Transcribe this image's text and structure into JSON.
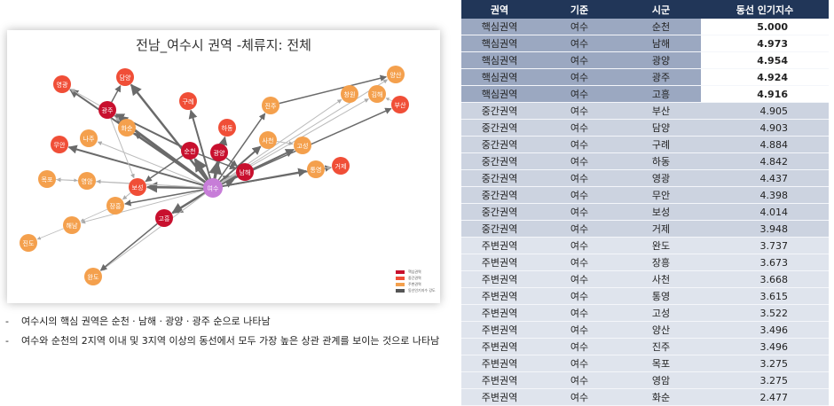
{
  "graph": {
    "title": "전남_여수시 권역 -체류지: 전체",
    "center": "여수",
    "nodes": [
      {
        "id": "여수",
        "tier": "center"
      },
      {
        "id": "순천",
        "tier": "core"
      },
      {
        "id": "남해",
        "tier": "core"
      },
      {
        "id": "광양",
        "tier": "core"
      },
      {
        "id": "광주",
        "tier": "core"
      },
      {
        "id": "고흥",
        "tier": "core"
      },
      {
        "id": "부산",
        "tier": "mid"
      },
      {
        "id": "담양",
        "tier": "mid"
      },
      {
        "id": "구례",
        "tier": "mid"
      },
      {
        "id": "하동",
        "tier": "mid"
      },
      {
        "id": "영광",
        "tier": "mid"
      },
      {
        "id": "무안",
        "tier": "mid"
      },
      {
        "id": "보성",
        "tier": "mid"
      },
      {
        "id": "거제",
        "tier": "mid"
      },
      {
        "id": "완도",
        "tier": "outer"
      },
      {
        "id": "장흥",
        "tier": "outer"
      },
      {
        "id": "사천",
        "tier": "outer"
      },
      {
        "id": "통영",
        "tier": "outer"
      },
      {
        "id": "고성",
        "tier": "outer"
      },
      {
        "id": "양산",
        "tier": "outer"
      },
      {
        "id": "진주",
        "tier": "outer"
      },
      {
        "id": "목포",
        "tier": "outer"
      },
      {
        "id": "영암",
        "tier": "outer"
      },
      {
        "id": "화순",
        "tier": "outer"
      },
      {
        "id": "나주",
        "tier": "outer"
      },
      {
        "id": "창원",
        "tier": "outer"
      },
      {
        "id": "김해",
        "tier": "outer"
      },
      {
        "id": "해남",
        "tier": "outer"
      },
      {
        "id": "진도",
        "tier": "outer"
      }
    ],
    "legend": [
      {
        "label": "핵심권역",
        "color": "#c8102e"
      },
      {
        "label": "중간권역",
        "color": "#f04e37"
      },
      {
        "label": "주변권역",
        "color": "#f4a04d"
      },
      {
        "label": "동선인기지수 강도",
        "color": "#555555"
      }
    ],
    "colors": {
      "center": "#c77dd8",
      "core": "#c8102e",
      "mid": "#f04e37",
      "outer": "#f4a04d"
    }
  },
  "notes": [
    "여수시의 핵심 권역은 순천ㆍ남해ㆍ광양ㆍ광주 순으로 나타남",
    "여수와 순천의 2지역 이내 및 3지역 이상의 동선에서 모두 가장 높은 상관 관계를 보이는 것으로 나타남"
  ],
  "table": {
    "headers": [
      "권역",
      "기준",
      "시군",
      "동선 인기지수"
    ],
    "rows": [
      {
        "tier": "core",
        "region": "핵심권역",
        "base": "여수",
        "city": "순천",
        "score": "5.000"
      },
      {
        "tier": "core",
        "region": "핵심권역",
        "base": "여수",
        "city": "남해",
        "score": "4.973"
      },
      {
        "tier": "core",
        "region": "핵심권역",
        "base": "여수",
        "city": "광양",
        "score": "4.954"
      },
      {
        "tier": "core",
        "region": "핵심권역",
        "base": "여수",
        "city": "광주",
        "score": "4.924"
      },
      {
        "tier": "core",
        "region": "핵심권역",
        "base": "여수",
        "city": "고흥",
        "score": "4.916"
      },
      {
        "tier": "mid",
        "region": "중간권역",
        "base": "여수",
        "city": "부산",
        "score": "4.905"
      },
      {
        "tier": "mid",
        "region": "중간권역",
        "base": "여수",
        "city": "담양",
        "score": "4.903"
      },
      {
        "tier": "mid",
        "region": "중간권역",
        "base": "여수",
        "city": "구례",
        "score": "4.884"
      },
      {
        "tier": "mid",
        "region": "중간권역",
        "base": "여수",
        "city": "하동",
        "score": "4.842"
      },
      {
        "tier": "mid",
        "region": "중간권역",
        "base": "여수",
        "city": "영광",
        "score": "4.437"
      },
      {
        "tier": "mid",
        "region": "중간권역",
        "base": "여수",
        "city": "무안",
        "score": "4.398"
      },
      {
        "tier": "mid",
        "region": "중간권역",
        "base": "여수",
        "city": "보성",
        "score": "4.014"
      },
      {
        "tier": "mid",
        "region": "중간권역",
        "base": "여수",
        "city": "거제",
        "score": "3.948"
      },
      {
        "tier": "outer",
        "region": "주변권역",
        "base": "여수",
        "city": "완도",
        "score": "3.737"
      },
      {
        "tier": "outer",
        "region": "주변권역",
        "base": "여수",
        "city": "장흥",
        "score": "3.673"
      },
      {
        "tier": "outer",
        "region": "주변권역",
        "base": "여수",
        "city": "사천",
        "score": "3.668"
      },
      {
        "tier": "outer",
        "region": "주변권역",
        "base": "여수",
        "city": "통영",
        "score": "3.615"
      },
      {
        "tier": "outer",
        "region": "주변권역",
        "base": "여수",
        "city": "고성",
        "score": "3.522"
      },
      {
        "tier": "outer",
        "region": "주변권역",
        "base": "여수",
        "city": "양산",
        "score": "3.496"
      },
      {
        "tier": "outer",
        "region": "주변권역",
        "base": "여수",
        "city": "진주",
        "score": "3.496"
      },
      {
        "tier": "outer",
        "region": "주변권역",
        "base": "여수",
        "city": "목포",
        "score": "3.275"
      },
      {
        "tier": "outer",
        "region": "주변권역",
        "base": "여수",
        "city": "영암",
        "score": "3.275"
      },
      {
        "tier": "outer",
        "region": "주변권역",
        "base": "여수",
        "city": "화순",
        "score": "2.477"
      }
    ]
  }
}
